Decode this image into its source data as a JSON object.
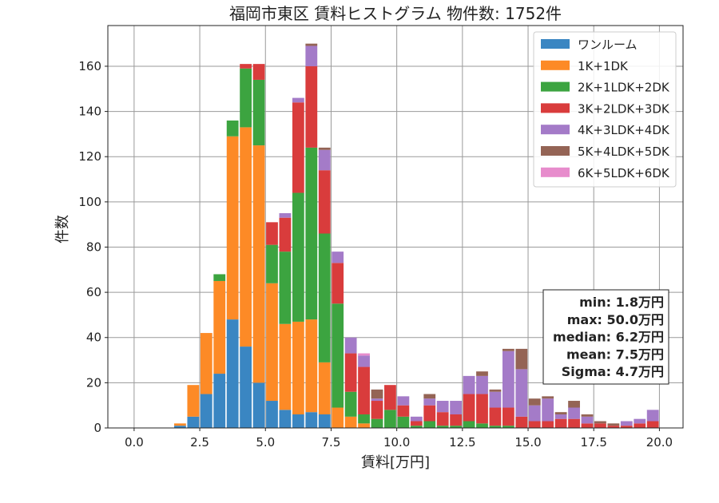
{
  "chart_data": {
    "type": "bar",
    "stacked": true,
    "title": "福岡市東区 賃料ヒストグラム 物件数: 1752件",
    "xlabel": "賃料[万円]",
    "ylabel": "件数",
    "xlim": [
      -1.0,
      20.9
    ],
    "ylim": [
      0,
      178
    ],
    "xticks": [
      0.0,
      2.5,
      5.0,
      7.5,
      10.0,
      12.5,
      15.0,
      17.5,
      20.0
    ],
    "xtick_labels": [
      "0.0",
      "2.5",
      "5.0",
      "7.5",
      "10.0",
      "12.5",
      "15.0",
      "17.5",
      "20.0"
    ],
    "yticks": [
      0,
      20,
      40,
      60,
      80,
      100,
      120,
      140,
      160
    ],
    "ytick_labels": [
      "0",
      "20",
      "40",
      "60",
      "80",
      "100",
      "120",
      "140",
      "160"
    ],
    "grid": true,
    "legend_position": "top-right",
    "bin_width": 0.5,
    "x": [
      0.0,
      0.5,
      1.0,
      1.5,
      2.0,
      2.5,
      3.0,
      3.5,
      4.0,
      4.5,
      5.0,
      5.5,
      6.0,
      6.5,
      7.0,
      7.5,
      8.0,
      8.5,
      9.0,
      9.5,
      10.0,
      10.5,
      11.0,
      11.5,
      12.0,
      12.5,
      13.0,
      13.5,
      14.0,
      14.5,
      15.0,
      15.5,
      16.0,
      16.5,
      17.0,
      17.5,
      18.0,
      18.5,
      19.0,
      19.5
    ],
    "series": [
      {
        "name": "ワンルーム",
        "color": "#3a86c2",
        "values": [
          0,
          0,
          0,
          1,
          5,
          15,
          24,
          48,
          36,
          20,
          12,
          8,
          6,
          7,
          6,
          0,
          0,
          0,
          0,
          0,
          0,
          0,
          0,
          0,
          0,
          0,
          0,
          0,
          0,
          0,
          0,
          0,
          0,
          0,
          0,
          0,
          0,
          0,
          0,
          0
        ]
      },
      {
        "name": "1K+1DK",
        "color": "#fd8a26",
        "values": [
          0,
          0,
          0,
          1,
          14,
          27,
          41,
          81,
          97,
          105,
          52,
          38,
          41,
          41,
          23,
          9,
          5,
          2,
          0,
          0,
          0,
          0,
          0,
          0,
          0,
          0,
          0,
          0,
          0,
          0,
          0,
          0,
          0,
          0,
          0,
          0,
          0,
          0,
          0,
          0
        ]
      },
      {
        "name": "2K+1LDK+2DK",
        "color": "#3ca440",
        "values": [
          0,
          0,
          0,
          0,
          0,
          0,
          3,
          7,
          26,
          29,
          17,
          32,
          57,
          76,
          57,
          46,
          11,
          4,
          4,
          8,
          5,
          1,
          3,
          1,
          1,
          3,
          2,
          1,
          1,
          0,
          0,
          0,
          0,
          0,
          0,
          0,
          0,
          0,
          0,
          0
        ]
      },
      {
        "name": "3K+2LDK+3DK",
        "color": "#d93c3c",
        "values": [
          0,
          0,
          0,
          0,
          0,
          0,
          0,
          0,
          2,
          7,
          10,
          15,
          40,
          36,
          28,
          18,
          17,
          21,
          8,
          11,
          5,
          2,
          7,
          6,
          5,
          12,
          13,
          8,
          8,
          5,
          3,
          3,
          4,
          4,
          2,
          2,
          1,
          1,
          2,
          3
        ]
      },
      {
        "name": "4K+3LDK+4DK",
        "color": "#a47bc8",
        "values": [
          0,
          0,
          0,
          0,
          0,
          0,
          0,
          0,
          0,
          0,
          0,
          2,
          2,
          9,
          9,
          5,
          7,
          5,
          1,
          0,
          4,
          2,
          3,
          5,
          6,
          8,
          8,
          7,
          25,
          21,
          7,
          10,
          2,
          5,
          3,
          0,
          0,
          2,
          2,
          5
        ]
      },
      {
        "name": "5K+4LDK+5DK",
        "color": "#946455",
        "values": [
          0,
          0,
          0,
          0,
          0,
          0,
          0,
          0,
          0,
          0,
          0,
          0,
          0,
          1,
          1,
          0,
          0,
          0,
          4,
          0,
          0,
          0,
          2,
          0,
          0,
          0,
          2,
          1,
          1,
          9,
          3,
          1,
          1,
          3,
          1,
          1,
          1,
          0,
          0,
          0
        ]
      },
      {
        "name": "6K+5LDK+6DK",
        "color": "#e78ccc",
        "values": [
          0,
          0,
          0,
          0,
          0,
          0,
          0,
          0,
          0,
          0,
          0,
          0,
          0,
          0,
          0,
          0,
          0,
          1,
          0,
          0,
          0,
          0,
          0,
          0,
          0,
          0,
          0,
          0,
          0,
          0,
          0,
          0,
          0,
          0,
          0,
          0,
          0,
          0,
          0,
          0
        ]
      }
    ],
    "stats": [
      {
        "label": "min",
        "value": "1.8万円"
      },
      {
        "label": "max",
        "value": "50.0万円"
      },
      {
        "label": "median",
        "value": "6.2万円"
      },
      {
        "label": "mean",
        "value": "7.5万円"
      },
      {
        "label": "Sigma",
        "value": "4.7万円"
      }
    ]
  }
}
